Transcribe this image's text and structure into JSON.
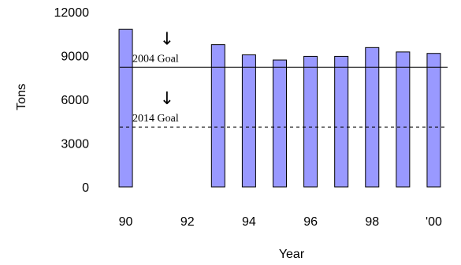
{
  "chart_data": {
    "type": "bar",
    "title": "",
    "xlabel": "Year",
    "ylabel": "Tons",
    "ylim": [
      0,
      12000
    ],
    "yticks": [
      "0",
      "3000",
      "6000",
      "9000",
      "12000"
    ],
    "x_tick_labels": [
      "90",
      "92",
      "94",
      "96",
      "98",
      "'00"
    ],
    "categories": [
      "90",
      "91",
      "92",
      "93",
      "94",
      "95",
      "96",
      "97",
      "98",
      "99",
      "00"
    ],
    "values": [
      10800,
      null,
      null,
      9750,
      9050,
      8700,
      8950,
      8950,
      9550,
      9250,
      9150
    ],
    "bar_color": "#9999ff",
    "reference_lines": [
      {
        "label": "2004 Goal",
        "value": 8200,
        "style": "solid"
      },
      {
        "label": "2014 Goal",
        "value": 4100,
        "style": "dashed"
      }
    ],
    "grid": false,
    "legend": "none"
  }
}
